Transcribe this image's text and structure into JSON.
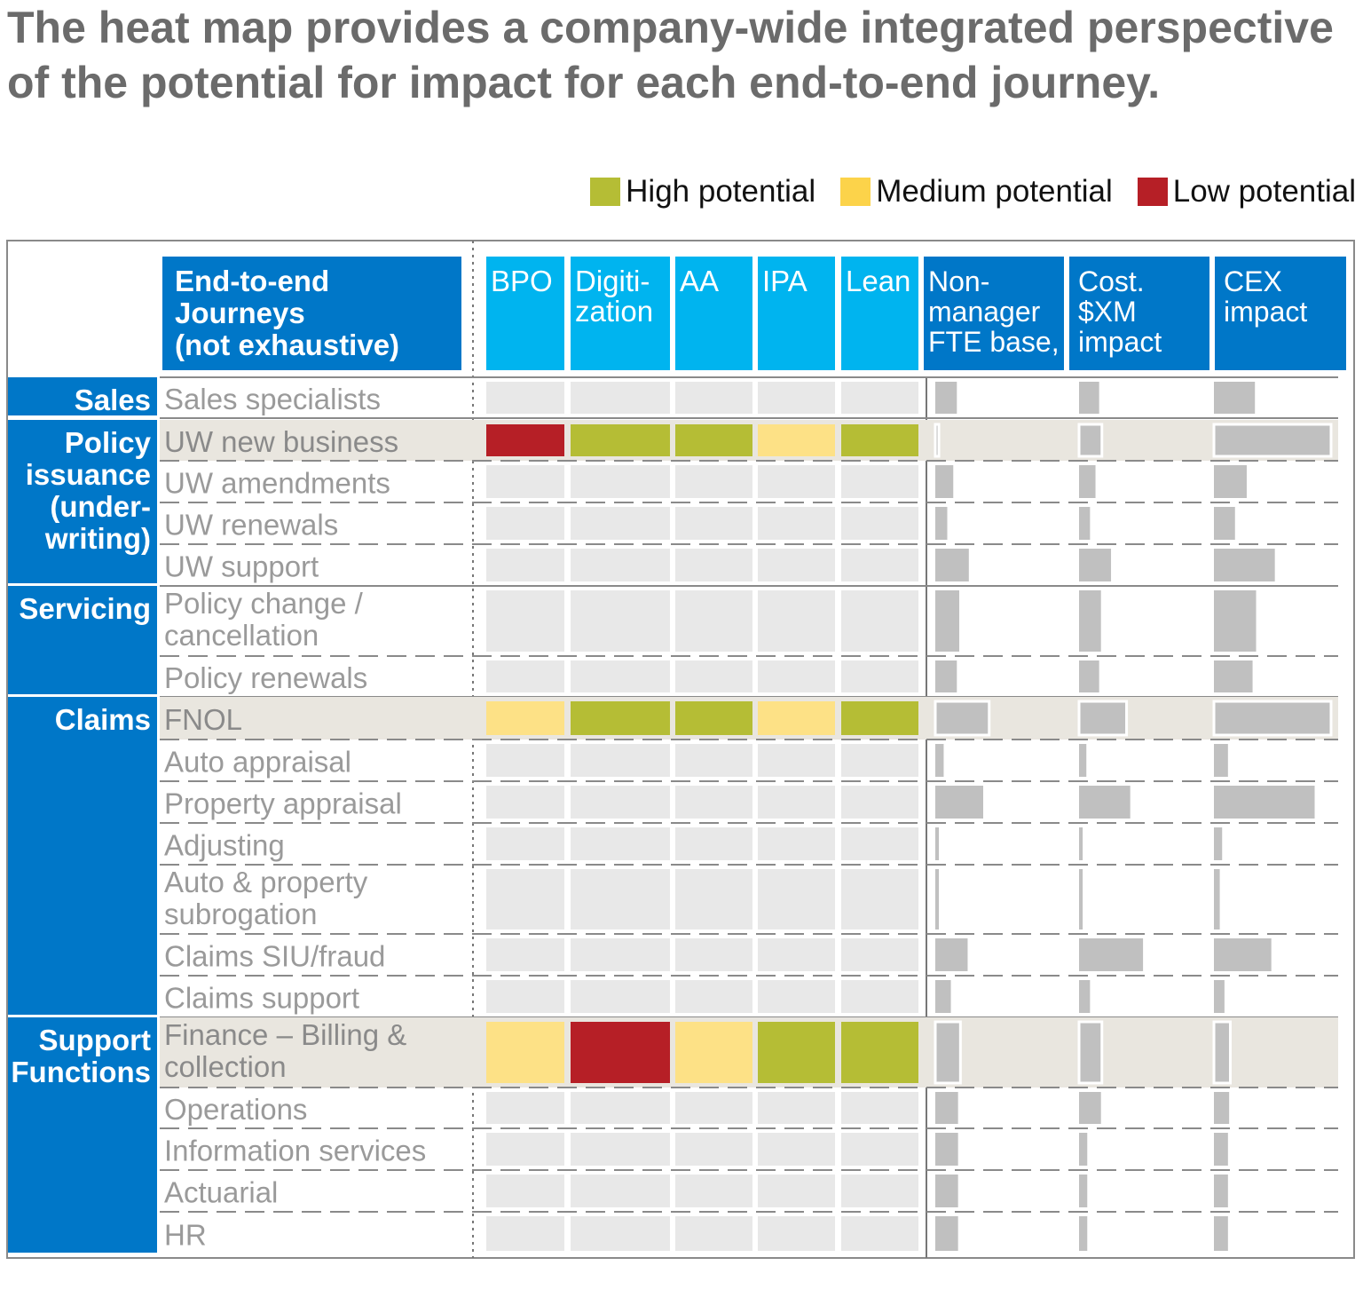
{
  "title_lines": [
    "The heat map provides a company-wide integrated perspective",
    "of the potential for impact for each end-to-end journey."
  ],
  "legend": [
    {
      "label": "High potential",
      "color": "#b5bd35"
    },
    {
      "label": "Medium potential",
      "color": "#fcd34a"
    },
    {
      "label": "Low potential",
      "color": "#b61f26"
    }
  ],
  "colors": {
    "brand_blue": "#0077c8",
    "light_blue": "#00b4ef",
    "empty_cell": "#e8e8e8",
    "highlight_row": "#e9e6df",
    "bar_gray": "#c0c0c0",
    "text_gray": "#8c8c8c",
    "medium_cell": "#fde186"
  },
  "chart_data": {
    "type": "heatmap",
    "title": "",
    "row_header": [
      "End-to-end",
      "Journeys",
      "(not exhaustive)"
    ],
    "columns": [
      {
        "key": "bpo",
        "label": [
          "BPO"
        ]
      },
      {
        "key": "digitization",
        "label": [
          "Digiti-",
          "zation"
        ]
      },
      {
        "key": "aa",
        "label": [
          "AA"
        ]
      },
      {
        "key": "ipa",
        "label": [
          "IPA"
        ]
      },
      {
        "key": "lean",
        "label": [
          "Lean"
        ]
      }
    ],
    "bar_columns": [
      {
        "key": "fte",
        "label": [
          "Non-",
          "manager",
          "FTE base,"
        ]
      },
      {
        "key": "cost",
        "label": [
          "Cost.",
          "$XM",
          "impact"
        ]
      },
      {
        "key": "cex",
        "label": [
          "CEX",
          "impact"
        ]
      }
    ],
    "groups": [
      {
        "label": [
          "Sales"
        ],
        "rows": [
          {
            "name": [
              "Sales specialists"
            ],
            "potential": [
              null,
              null,
              null,
              null,
              null
            ],
            "fte": 0.18,
            "cost": 0.22,
            "cex": 0.35
          }
        ]
      },
      {
        "label": [
          "Policy",
          "issuance",
          "(under-",
          "writing)"
        ],
        "rows": [
          {
            "name": [
              "UW new business"
            ],
            "potential": [
              "low",
              "high",
              "high",
              "medium",
              "high"
            ],
            "fte": 0.03,
            "cost": 0.25,
            "cex": 1.0
          },
          {
            "name": [
              "UW amendments"
            ],
            "potential": [
              null,
              null,
              null,
              null,
              null
            ],
            "fte": 0.15,
            "cost": 0.18,
            "cex": 0.28
          },
          {
            "name": [
              "UW renewals"
            ],
            "potential": [
              null,
              null,
              null,
              null,
              null
            ],
            "fte": 0.1,
            "cost": 0.12,
            "cex": 0.18
          },
          {
            "name": [
              "UW support"
            ],
            "potential": [
              null,
              null,
              null,
              null,
              null
            ],
            "fte": 0.28,
            "cost": 0.35,
            "cex": 0.52
          }
        ]
      },
      {
        "label": [
          "Servicing"
        ],
        "rows": [
          {
            "name": [
              "Policy change /",
              "cancellation"
            ],
            "potential": [
              null,
              null,
              null,
              null,
              null
            ],
            "fte": 0.2,
            "cost": 0.24,
            "cex": 0.36
          },
          {
            "name": [
              "Policy renewals"
            ],
            "potential": [
              null,
              null,
              null,
              null,
              null
            ],
            "fte": 0.18,
            "cost": 0.22,
            "cex": 0.33
          }
        ]
      },
      {
        "label": [
          "Claims"
        ],
        "rows": [
          {
            "name": [
              "FNOL"
            ],
            "potential": [
              "medium",
              "high",
              "high",
              "medium",
              "high"
            ],
            "fte": 0.45,
            "cost": 0.52,
            "cex": 1.0
          },
          {
            "name": [
              "Auto appraisal"
            ],
            "potential": [
              null,
              null,
              null,
              null,
              null
            ],
            "fte": 0.07,
            "cost": 0.08,
            "cex": 0.12
          },
          {
            "name": [
              "Property appraisal"
            ],
            "potential": [
              null,
              null,
              null,
              null,
              null
            ],
            "fte": 0.4,
            "cost": 0.56,
            "cex": 0.86
          },
          {
            "name": [
              "Adjusting"
            ],
            "potential": [
              null,
              null,
              null,
              null,
              null
            ],
            "fte": 0.03,
            "cost": 0.04,
            "cex": 0.07
          },
          {
            "name": [
              "Auto & property",
              "subrogation"
            ],
            "potential": [
              null,
              null,
              null,
              null,
              null
            ],
            "fte": 0.03,
            "cost": 0.04,
            "cex": 0.05
          },
          {
            "name": [
              "Claims SIU/fraud"
            ],
            "potential": [
              null,
              null,
              null,
              null,
              null
            ],
            "fte": 0.27,
            "cost": 0.7,
            "cex": 0.49
          },
          {
            "name": [
              "Claims support"
            ],
            "potential": [
              null,
              null,
              null,
              null,
              null
            ],
            "fte": 0.13,
            "cost": 0.12,
            "cex": 0.09
          }
        ]
      },
      {
        "label": [
          "Support",
          "Functions"
        ],
        "rows": [
          {
            "name": [
              "Finance – Billing &",
              "collection"
            ],
            "potential": [
              "medium",
              "low",
              "medium",
              "high",
              "high"
            ],
            "fte": 0.21,
            "cost": 0.25,
            "cex": 0.14
          },
          {
            "name": [
              "Operations"
            ],
            "potential": [
              null,
              null,
              null,
              null,
              null
            ],
            "fte": 0.19,
            "cost": 0.24,
            "cex": 0.13
          },
          {
            "name": [
              "Information services"
            ],
            "potential": [
              null,
              null,
              null,
              null,
              null
            ],
            "fte": 0.19,
            "cost": 0.09,
            "cex": 0.12
          },
          {
            "name": [
              "Actuarial"
            ],
            "potential": [
              null,
              null,
              null,
              null,
              null
            ],
            "fte": 0.19,
            "cost": 0.09,
            "cex": 0.12
          },
          {
            "name": [
              "HR"
            ],
            "potential": [
              null,
              null,
              null,
              null,
              null
            ],
            "fte": 0.19,
            "cost": 0.09,
            "cex": 0.12
          }
        ]
      }
    ]
  }
}
